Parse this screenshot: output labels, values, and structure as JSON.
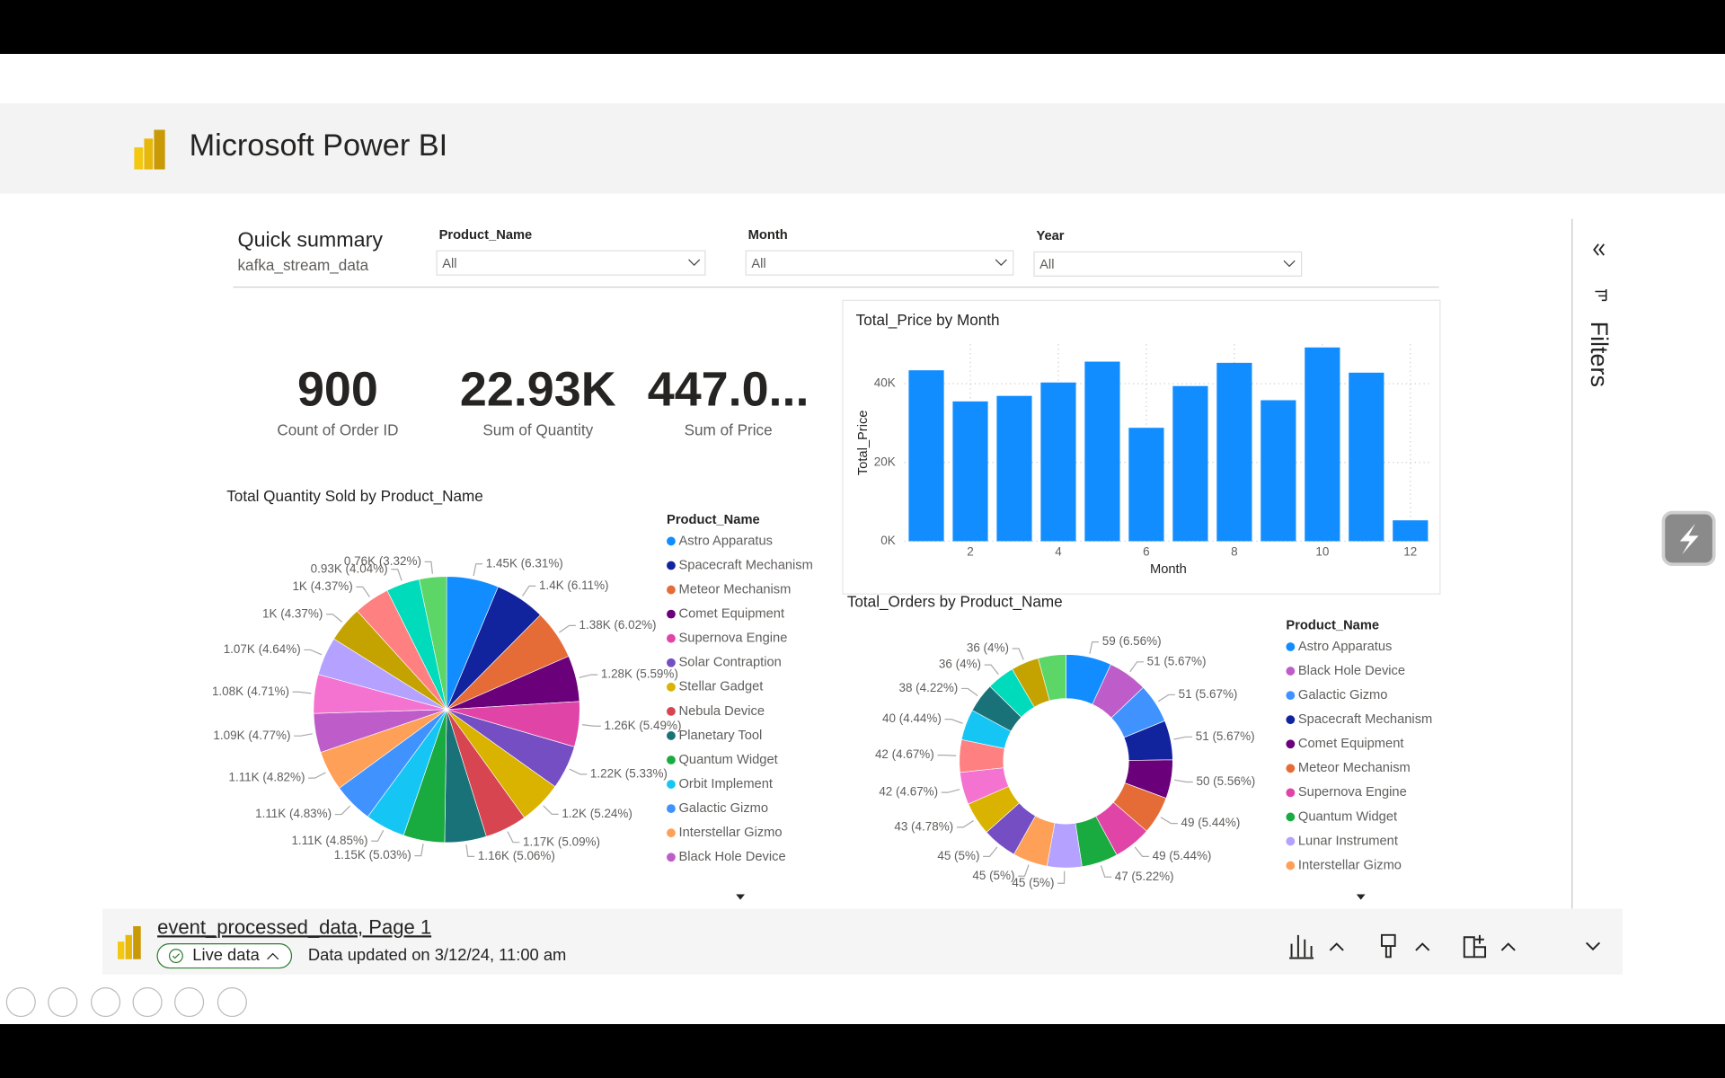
{
  "header": {
    "title": "Microsoft Power BI"
  },
  "summary": {
    "title": "Quick summary",
    "subtitle": "kafka_stream_data"
  },
  "slicers": [
    {
      "label": "Product_Name",
      "value": "All"
    },
    {
      "label": "Month",
      "value": "All"
    },
    {
      "label": "Year",
      "value": "All"
    }
  ],
  "cards": [
    {
      "value": "900",
      "label": "Count of Order ID"
    },
    {
      "value": "22.93K",
      "label": "Sum of Quantity"
    },
    {
      "value": "447.0...",
      "label": "Sum of Price"
    }
  ],
  "filters_pane": {
    "title": "Filters"
  },
  "footer": {
    "report": "event_processed_data, Page 1",
    "status": "Live data",
    "updated": "Data updated on 3/12/24, 11:00 am"
  },
  "chart_data": [
    {
      "type": "bar",
      "title": "Total_Price by Month",
      "x_label": "Month",
      "y_label": "Total_Price",
      "x": [
        1,
        2,
        3,
        4,
        5,
        6,
        7,
        8,
        9,
        10,
        11,
        12
      ],
      "values": [
        43400,
        35500,
        36900,
        40300,
        45600,
        28800,
        39400,
        45300,
        35800,
        49200,
        42800,
        5300
      ],
      "color": "#118DFF",
      "xlim": [
        0.5,
        12.5
      ],
      "xticks": [
        2,
        4,
        6,
        8,
        10,
        12
      ],
      "ylim": [
        0,
        50000
      ],
      "yticks": [
        {
          "value": 0,
          "label": "0K"
        },
        {
          "value": 20000,
          "label": "20K"
        },
        {
          "value": 40000,
          "label": "40K"
        }
      ],
      "grid": true
    },
    {
      "type": "pie",
      "title": "Total Quantity Sold by Product_Name",
      "legend_title": "Product_Name",
      "categories": [
        "Astro Apparatus",
        "Spacecraft Mechanism",
        "Meteor Mechanism",
        "Comet Equipment",
        "Supernova Engine",
        "Solar Contraption",
        "Stellar Gadget",
        "Nebula Device",
        "Planetary Tool",
        "Quantum Widget",
        "Orbit Implement",
        "Galactic Gizmo",
        "Interstellar Gizmo",
        "Black Hole Device",
        null,
        null,
        null,
        null,
        null,
        null
      ],
      "values": [
        1450,
        1400,
        1380,
        1280,
        1260,
        1220,
        1200,
        1170,
        1160,
        1150,
        1110,
        1110,
        1110,
        1090,
        1080,
        1070,
        1000,
        1000,
        930,
        760
      ],
      "value_labels": [
        "1.45K (6.31%)",
        "1.4K (6.11%)",
        "1.38K (6.02%)",
        "1.28K (5.59%)",
        "1.26K (5.49%)",
        "1.22K (5.33%)",
        "1.2K (5.24%)",
        "1.17K (5.09%)",
        "1.16K (5.06%)",
        "1.15K (5.03%)",
        "1.11K (4.85%)",
        "1.11K (4.83%)",
        "1.11K (4.82%)",
        "1.09K (4.77%)",
        "1.08K (4.71%)",
        "1.07K (4.64%)",
        "1K (4.37%)",
        "1K (4.37%)",
        "0.93K (4.04%)",
        "0.76K (3.32%)"
      ],
      "colors": [
        "#118DFF",
        "#12239E",
        "#E66C37",
        "#6B007B",
        "#E044A7",
        "#744EC2",
        "#D9B300",
        "#D64550",
        "#197278",
        "#1AAB40",
        "#15C6F4",
        "#4092FF",
        "#FFA058",
        "#BE5DC9",
        "#F472D0",
        "#B5A1FF",
        "#C4A200",
        "#FF8080",
        "#00DBBC",
        "#5BD667"
      ]
    },
    {
      "type": "donut",
      "title": "Total_Orders by Product_Name",
      "legend_title": "Product_Name",
      "categories": [
        "Astro Apparatus",
        "Black Hole Device",
        "Galactic Gizmo",
        "Spacecraft Mechanism",
        "Comet Equipment",
        "Meteor Mechanism",
        "Supernova Engine",
        "Quantum Widget",
        "Lunar Instrument",
        "Interstellar Gizmo",
        null,
        null,
        null,
        null,
        null,
        null,
        null,
        null,
        null
      ],
      "values": [
        59,
        51,
        51,
        51,
        50,
        49,
        49,
        47,
        45,
        45,
        45,
        43,
        42,
        42,
        40,
        38,
        36,
        36,
        36
      ],
      "value_labels": [
        "59 (6.56%)",
        "51 (5.67%)",
        "51 (5.67%)",
        "51 (5.67%)",
        "50 (5.56%)",
        "49 (5.44%)",
        "49 (5.44%)",
        "47 (5.22%)",
        "45 (5%)",
        "45 (5%)",
        "45 (5%)",
        "43 (4.78%)",
        "42 (4.67%)",
        "42 (4.67%)",
        "40 (4.44%)",
        "38 (4.22%)",
        "36 (4%)",
        "36 (4%)",
        null
      ],
      "colors": [
        "#118DFF",
        "#BE5DC9",
        "#4092FF",
        "#12239E",
        "#6B007B",
        "#E66C37",
        "#E044A7",
        "#1AAB40",
        "#B5A1FF",
        "#FFA058",
        "#744EC2",
        "#D9B300",
        "#F472D0",
        "#FF8080",
        "#15C6F4",
        "#197278",
        "#00DBBC",
        "#C4A200",
        "#5BD667"
      ]
    }
  ]
}
